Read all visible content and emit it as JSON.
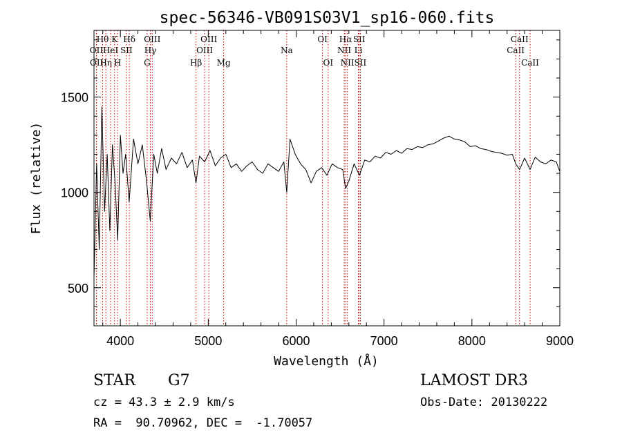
{
  "chart_data": {
    "type": "line",
    "title": "spec-56346-VB091S03V1_sp16-060.fits",
    "xlabel": "Wavelength (Å)",
    "ylabel": "Flux (relative)",
    "xlim": [
      3700,
      9000
    ],
    "ylim": [
      300,
      1850
    ],
    "xticks": [
      4000,
      5000,
      6000,
      7000,
      8000,
      9000
    ],
    "xtick_labels": [
      "4000",
      "5000",
      "6000",
      "7000",
      "8000",
      "9000"
    ],
    "yticks": [
      500,
      1000,
      1500
    ],
    "ytick_labels": [
      "500",
      "1000",
      "1500"
    ],
    "series": [
      {
        "name": "flux",
        "x": [
          3700,
          3730,
          3760,
          3790,
          3820,
          3850,
          3880,
          3910,
          3940,
          3970,
          4000,
          4030,
          4060,
          4100,
          4150,
          4200,
          4250,
          4300,
          4340,
          4380,
          4420,
          4470,
          4520,
          4580,
          4640,
          4700,
          4760,
          4820,
          4861,
          4900,
          4960,
          5020,
          5080,
          5140,
          5200,
          5260,
          5320,
          5380,
          5440,
          5500,
          5560,
          5620,
          5680,
          5740,
          5800,
          5860,
          5893,
          5930,
          5990,
          6050,
          6110,
          6170,
          6230,
          6290,
          6350,
          6410,
          6470,
          6530,
          6563,
          6600,
          6660,
          6720,
          6780,
          6840,
          6900,
          6960,
          7020,
          7080,
          7140,
          7200,
          7260,
          7320,
          7380,
          7440,
          7500,
          7560,
          7620,
          7680,
          7740,
          7800,
          7860,
          7920,
          7980,
          8040,
          8100,
          8160,
          8220,
          8280,
          8340,
          8400,
          8460,
          8498,
          8542,
          8600,
          8662,
          8720,
          8780,
          8840,
          8900,
          8960,
          9000
        ],
        "y": [
          550,
          1150,
          700,
          1450,
          900,
          1200,
          800,
          1250,
          1050,
          750,
          1300,
          1100,
          1200,
          950,
          1280,
          1150,
          1250,
          1050,
          850,
          1200,
          1100,
          1230,
          1120,
          1180,
          1150,
          1210,
          1130,
          1170,
          1050,
          1190,
          1160,
          1220,
          1140,
          1180,
          1200,
          1130,
          1150,
          1110,
          1140,
          1160,
          1120,
          1100,
          1150,
          1130,
          1110,
          1160,
          1000,
          1280,
          1200,
          1150,
          1120,
          1050,
          1110,
          1130,
          1090,
          1150,
          1130,
          1120,
          1020,
          1060,
          1150,
          1090,
          1170,
          1160,
          1190,
          1180,
          1210,
          1200,
          1220,
          1205,
          1230,
          1225,
          1240,
          1235,
          1250,
          1255,
          1270,
          1285,
          1295,
          1280,
          1275,
          1265,
          1240,
          1245,
          1230,
          1225,
          1215,
          1210,
          1205,
          1195,
          1200,
          1150,
          1120,
          1180,
          1120,
          1185,
          1160,
          1150,
          1170,
          1160,
          1110
        ]
      }
    ],
    "lines": [
      {
        "label": "Hθ",
        "x": 3798,
        "row": 1
      },
      {
        "label": "OII",
        "x": 3727,
        "row": 2
      },
      {
        "label": "OII",
        "x": 3729,
        "row": 3
      },
      {
        "label": "Hη",
        "x": 3835,
        "row": 3
      },
      {
        "label": "HeI",
        "x": 3889,
        "row": 2
      },
      {
        "label": "K",
        "x": 3934,
        "row": 1
      },
      {
        "label": "H",
        "x": 3968,
        "row": 3
      },
      {
        "label": "SII",
        "x": 4069,
        "row": 2
      },
      {
        "label": "Hδ",
        "x": 4102,
        "row": 1
      },
      {
        "label": "G",
        "x": 4305,
        "row": 3
      },
      {
        "label": "Hγ",
        "x": 4341,
        "row": 2
      },
      {
        "label": "OIII",
        "x": 4363,
        "row": 1
      },
      {
        "label": "Hβ",
        "x": 4861,
        "row": 3
      },
      {
        "label": "OIII",
        "x": 4959,
        "row": 2
      },
      {
        "label": "OIII",
        "x": 5007,
        "row": 1
      },
      {
        "label": "Mg",
        "x": 5175,
        "row": 3
      },
      {
        "label": "Na",
        "x": 5893,
        "row": 2
      },
      {
        "label": "OI",
        "x": 6300,
        "row": 1
      },
      {
        "label": "OI",
        "x": 6364,
        "row": 3
      },
      {
        "label": "NII",
        "x": 6548,
        "row": 2
      },
      {
        "label": "Hα",
        "x": 6563,
        "row": 1
      },
      {
        "label": "NII",
        "x": 6583,
        "row": 3
      },
      {
        "label": "Li",
        "x": 6708,
        "row": 2
      },
      {
        "label": "SII",
        "x": 6717,
        "row": 1
      },
      {
        "label": "SII",
        "x": 6731,
        "row": 3
      },
      {
        "label": "CaII",
        "x": 8498,
        "row": 2
      },
      {
        "label": "CaII",
        "x": 8542,
        "row": 1
      },
      {
        "label": "CaII",
        "x": 8662,
        "row": 3
      }
    ],
    "line_color": "#c00000",
    "grid": false,
    "legend": "none"
  },
  "info": {
    "object_class": "STAR",
    "subclass": "G7",
    "survey": "LAMOST DR3",
    "cz": "cz = 43.3 ± 2.9 km/s",
    "obs_date": "Obs-Date: 20130222",
    "coords": "RA =  90.70962, DEC =  -1.70057"
  }
}
